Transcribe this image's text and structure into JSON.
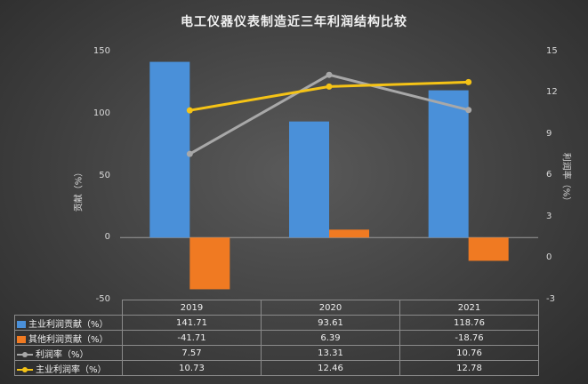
{
  "chart_data": {
    "type": "bar",
    "title": "电工仪器仪表制造近三年利润结构比较",
    "categories": [
      "2019",
      "2020",
      "2021"
    ],
    "ylabel": "贡献（%）",
    "y2label": "利润率（%）",
    "ylim": [
      -50,
      150
    ],
    "y2lim": [
      -3,
      15
    ],
    "yticks": [
      "150",
      "100",
      "50",
      "0",
      "-50"
    ],
    "y2ticks": [
      "15",
      "12",
      "9",
      "6",
      "3",
      "0",
      "-3"
    ],
    "series": [
      {
        "name": "主业利润贡献（%）",
        "type": "bar",
        "axis": "left",
        "color": "#4a90d9",
        "values": [
          141.71,
          93.61,
          118.76
        ],
        "labels": [
          "141.71",
          "93.61",
          "118.76"
        ]
      },
      {
        "name": "其他利润贡献（%）",
        "type": "bar",
        "axis": "left",
        "color": "#f07a22",
        "values": [
          -41.71,
          6.39,
          -18.76
        ],
        "labels": [
          "-41.71",
          "6.39",
          "-18.76"
        ]
      },
      {
        "name": "利润率（%）",
        "type": "line",
        "axis": "right",
        "color": "#a8a8a8",
        "values": [
          7.57,
          13.31,
          10.76
        ],
        "labels": [
          "7.57",
          "13.31",
          "10.76"
        ]
      },
      {
        "name": "主业利润率（%）",
        "type": "line",
        "axis": "right",
        "color": "#f5c316",
        "values": [
          10.73,
          12.46,
          12.78
        ],
        "labels": [
          "10.73",
          "12.46",
          "12.78"
        ]
      }
    ],
    "legend": "data-table-below",
    "grid": false
  }
}
